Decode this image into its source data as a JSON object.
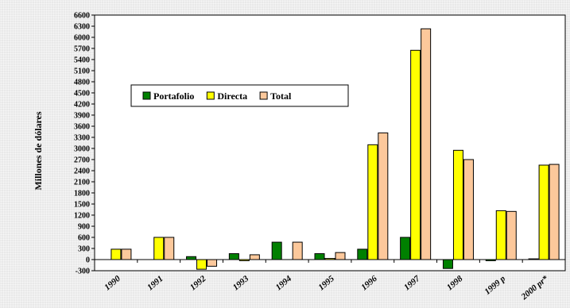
{
  "chart_data": {
    "type": "bar",
    "title": "",
    "xlabel": "",
    "ylabel": "Millones de dólares",
    "ylim": [
      -300,
      6600
    ],
    "yticks": [
      -300,
      0,
      300,
      600,
      900,
      1200,
      1500,
      1800,
      2100,
      2400,
      2700,
      3000,
      3300,
      3600,
      3900,
      4200,
      4500,
      4800,
      5100,
      5400,
      5700,
      6000,
      6300,
      6600
    ],
    "categories": [
      "1990",
      "1991",
      "1992",
      "1993",
      "1994",
      "1995",
      "1996",
      "1997",
      "1998",
      "1999 p",
      "2000 pr*"
    ],
    "legend_position": "upper-left inside plot",
    "grid": false,
    "series": [
      {
        "name": "Portafolio",
        "color": "#008000",
        "values": [
          0,
          0,
          80,
          160,
          470,
          160,
          280,
          600,
          -240,
          -30,
          20
        ]
      },
      {
        "name": "Directa",
        "color": "#ffff00",
        "values": [
          280,
          600,
          -260,
          -30,
          0,
          30,
          3100,
          5650,
          2950,
          1320,
          2550
        ]
      },
      {
        "name": "Total",
        "color": "#fcc89b",
        "values": [
          280,
          600,
          -180,
          130,
          470,
          190,
          3420,
          6230,
          2700,
          1300,
          2570
        ]
      }
    ]
  }
}
